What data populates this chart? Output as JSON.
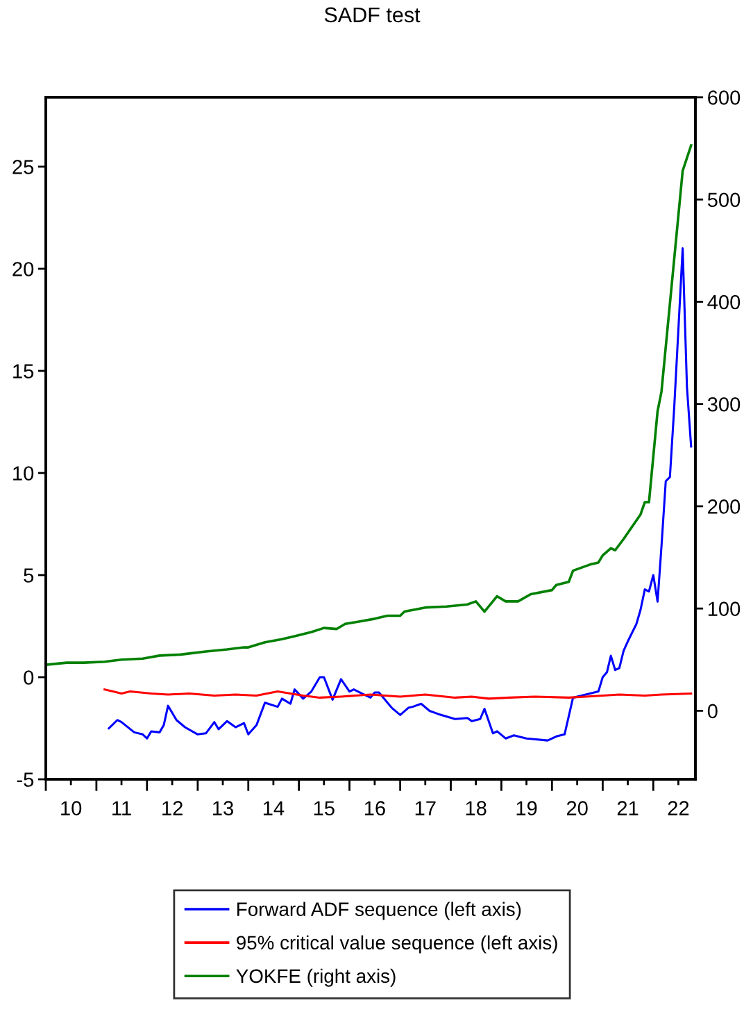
{
  "chart_data": {
    "type": "line",
    "title": "SADF test",
    "xlim": [
      "2010-01",
      "2022-11"
    ],
    "xticks": [
      {
        "value": "2010-01",
        "label": null
      },
      {
        "value": "2010-07",
        "label": "10"
      },
      {
        "value": "2011-01",
        "label": null
      },
      {
        "value": "2011-07",
        "label": "11"
      },
      {
        "value": "2012-01",
        "label": null
      },
      {
        "value": "2012-07",
        "label": "12"
      },
      {
        "value": "2013-01",
        "label": null
      },
      {
        "value": "2013-07",
        "label": "13"
      },
      {
        "value": "2014-01",
        "label": null
      },
      {
        "value": "2014-07",
        "label": "14"
      },
      {
        "value": "2015-01",
        "label": null
      },
      {
        "value": "2015-07",
        "label": "15"
      },
      {
        "value": "2016-01",
        "label": null
      },
      {
        "value": "2016-07",
        "label": "16"
      },
      {
        "value": "2017-01",
        "label": null
      },
      {
        "value": "2017-07",
        "label": "17"
      },
      {
        "value": "2018-01",
        "label": null
      },
      {
        "value": "2018-07",
        "label": "18"
      },
      {
        "value": "2019-01",
        "label": null
      },
      {
        "value": "2019-07",
        "label": "19"
      },
      {
        "value": "2020-01",
        "label": null
      },
      {
        "value": "2020-07",
        "label": "20"
      },
      {
        "value": "2021-01",
        "label": null
      },
      {
        "value": "2021-07",
        "label": "21"
      },
      {
        "value": "2022-01",
        "label": null
      },
      {
        "value": "2022-07",
        "label": "22"
      }
    ],
    "ylim": [
      -5,
      28.4
    ],
    "yticks": [
      -5,
      0,
      5,
      10,
      15,
      20,
      25
    ],
    "y2lim": [
      -67,
      600
    ],
    "y2ticks": [
      0,
      100,
      200,
      300,
      400,
      500,
      600
    ],
    "grid": false,
    "legend": "bottom",
    "line_style": "solid",
    "series": [
      {
        "name": "Forward ADF sequence (left axis)",
        "color": "#0000ff",
        "x": [
          "2011-04",
          "2011-06",
          "2011-07",
          "2011-10",
          "2011-12",
          "2012-01",
          "2012-02",
          "2012-04",
          "2012-05",
          "2012-06",
          "2012-08",
          "2012-10",
          "2013-01",
          "2013-03",
          "2013-05",
          "2013-06",
          "2013-08",
          "2013-10",
          "2013-12",
          "2014-01",
          "2014-03",
          "2014-05",
          "2014-08",
          "2014-09",
          "2014-11",
          "2014-12",
          "2015-02",
          "2015-04",
          "2015-06",
          "2015-07",
          "2015-09",
          "2015-11",
          "2016-01",
          "2016-02",
          "2016-04",
          "2016-06",
          "2016-07",
          "2016-08",
          "2016-11",
          "2017-01",
          "2017-03",
          "2017-04",
          "2017-06",
          "2017-08",
          "2017-10",
          "2018-02",
          "2018-05",
          "2018-06",
          "2018-08",
          "2018-09",
          "2018-11",
          "2018-12",
          "2019-02",
          "2019-04",
          "2019-07",
          "2019-12",
          "2020-02",
          "2020-04",
          "2020-06",
          "2020-09",
          "2020-12",
          "2021-01",
          "2021-02",
          "2021-03",
          "2021-04",
          "2021-05",
          "2021-06",
          "2021-07",
          "2021-09",
          "2021-10",
          "2021-11",
          "2021-12",
          "2022-01",
          "2022-02",
          "2022-03",
          "2022-04",
          "2022-05",
          "2022-06",
          "2022-07",
          "2022-08",
          "2022-09",
          "2022-10"
        ],
        "values": [
          -2.5,
          -2.1,
          -2.2,
          -2.7,
          -2.8,
          -3.0,
          -2.65,
          -2.7,
          -2.35,
          -1.4,
          -2.1,
          -2.45,
          -2.8,
          -2.75,
          -2.2,
          -2.55,
          -2.15,
          -2.45,
          -2.25,
          -2.8,
          -2.35,
          -1.25,
          -1.45,
          -1.05,
          -1.3,
          -0.6,
          -1.05,
          -0.7,
          0.0,
          0.0,
          -1.1,
          -0.1,
          -0.7,
          -0.6,
          -0.8,
          -1.0,
          -0.75,
          -0.75,
          -1.5,
          -1.85,
          -1.5,
          -1.45,
          -1.3,
          -1.65,
          -1.8,
          -2.05,
          -2.0,
          -2.15,
          -2.05,
          -1.55,
          -2.75,
          -2.65,
          -3.0,
          -2.85,
          -3.0,
          -3.1,
          -2.9,
          -2.8,
          -1.0,
          -0.85,
          -0.7,
          0.0,
          0.25,
          1.05,
          0.35,
          0.45,
          1.3,
          1.75,
          2.6,
          3.3,
          4.3,
          4.2,
          5.0,
          3.7,
          6.4,
          9.6,
          9.8,
          13.2,
          17.0,
          21.0,
          14.2,
          11.3
        ]
      },
      {
        "name": "95% critical value sequence (left axis)",
        "color": "#ff0000",
        "x": [
          "2011-03",
          "2011-05",
          "2011-07",
          "2011-09",
          "2012-02",
          "2012-06",
          "2012-11",
          "2013-05",
          "2013-10",
          "2014-03",
          "2014-08",
          "2015-02",
          "2015-06",
          "2015-11",
          "2016-06",
          "2017-01",
          "2017-07",
          "2018-02",
          "2018-06",
          "2018-10",
          "2019-03",
          "2019-09",
          "2020-05",
          "2020-09",
          "2021-05",
          "2021-11",
          "2022-03",
          "2022-10"
        ],
        "values": [
          -0.6,
          -0.7,
          -0.8,
          -0.7,
          -0.8,
          -0.85,
          -0.8,
          -0.9,
          -0.85,
          -0.9,
          -0.7,
          -0.9,
          -1.0,
          -0.95,
          -0.85,
          -0.95,
          -0.85,
          -1.0,
          -0.95,
          -1.05,
          -1.0,
          -0.95,
          -1.0,
          -0.95,
          -0.85,
          -0.9,
          -0.85,
          -0.8
        ]
      },
      {
        "name": "YOKFE (right axis)",
        "color": "#008000",
        "axis": "y2",
        "x": [
          "2010-01",
          "2010-06",
          "2010-10",
          "2011-03",
          "2011-07",
          "2011-12",
          "2012-04",
          "2012-09",
          "2012-11",
          "2013-03",
          "2013-08",
          "2013-12",
          "2014-01",
          "2014-05",
          "2014-09",
          "2014-12",
          "2015-04",
          "2015-07",
          "2015-10",
          "2015-12",
          "2016-03",
          "2016-07",
          "2016-10",
          "2017-01",
          "2017-02",
          "2017-07",
          "2017-12",
          "2018-05",
          "2018-07",
          "2018-09",
          "2018-12",
          "2019-02",
          "2019-05",
          "2019-08",
          "2020-01",
          "2020-02",
          "2020-05",
          "2020-06",
          "2020-10",
          "2020-12",
          "2021-01",
          "2021-03",
          "2021-04",
          "2021-06",
          "2021-10",
          "2021-11",
          "2021-12",
          "2022-02",
          "2022-03",
          "2022-08",
          "2022-10"
        ],
        "values": [
          45,
          47,
          47,
          48,
          50,
          51,
          54,
          55,
          56,
          58,
          60,
          62,
          62,
          67,
          70,
          73,
          77,
          81,
          80,
          85,
          87,
          90,
          93,
          93,
          97,
          101,
          102,
          104,
          107,
          97,
          112,
          107,
          107,
          114,
          118,
          123,
          126,
          137,
          143,
          145,
          152,
          159,
          157,
          168,
          192,
          204,
          204,
          293,
          312,
          528,
          553
        ]
      }
    ]
  }
}
